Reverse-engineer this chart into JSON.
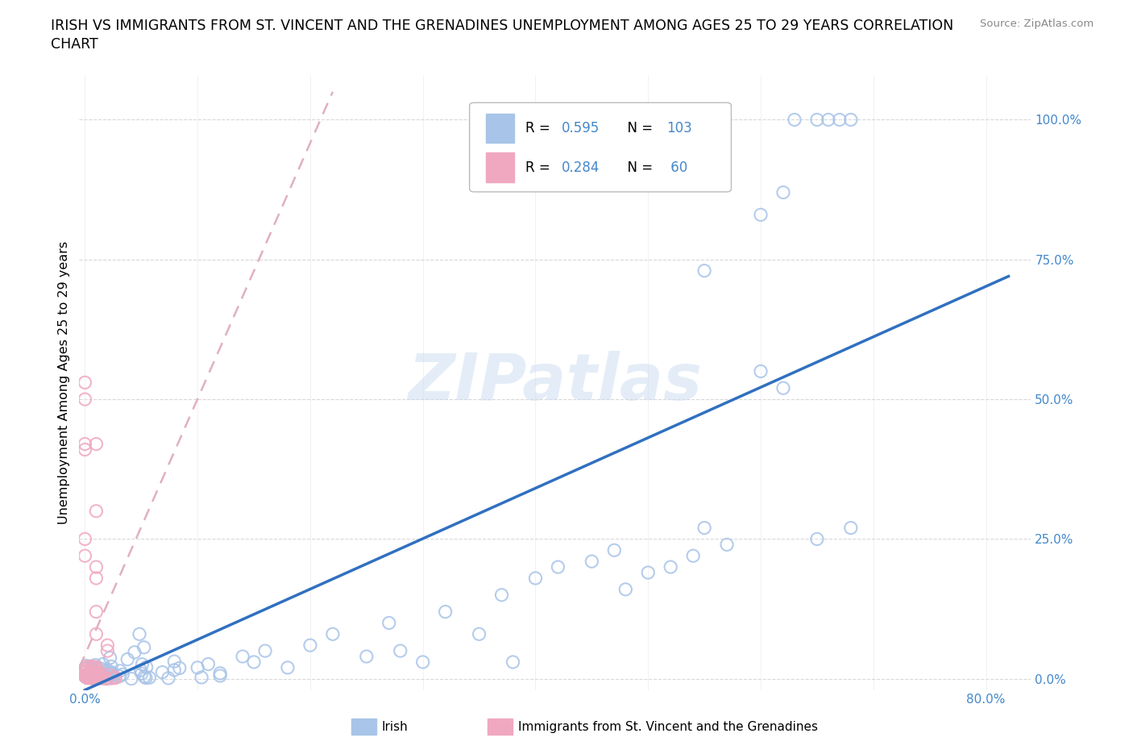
{
  "title_line1": "IRISH VS IMMIGRANTS FROM ST. VINCENT AND THE GRENADINES UNEMPLOYMENT AMONG AGES 25 TO 29 YEARS CORRELATION",
  "title_line2": "CHART",
  "source": "Source: ZipAtlas.com",
  "ylabel": "Unemployment Among Ages 25 to 29 years",
  "irish_color": "#a8c4e8",
  "svg_color": "#f0a8c0",
  "irish_R": 0.595,
  "irish_N": 103,
  "svg_R": 0.284,
  "svg_N": 60,
  "trend_line_color": "#3070c0",
  "trend_line_dashed_color": "#e0b0c0",
  "watermark": "ZIPatlas",
  "background_color": "#ffffff",
  "grid_color": "#d8d8d8",
  "xlim": [
    -0.005,
    0.84
  ],
  "ylim": [
    -0.02,
    1.08
  ],
  "x_ticks": [
    0.0,
    0.1,
    0.2,
    0.3,
    0.4,
    0.5,
    0.6,
    0.7,
    0.8
  ],
  "x_tick_labels": [
    "0.0%",
    "",
    "",
    "",
    "",
    "",
    "",
    "",
    "80.0%"
  ],
  "y_ticks": [
    0.0,
    0.25,
    0.5,
    0.75,
    1.0
  ],
  "y_tick_labels": [
    "0.0%",
    "25.0%",
    "50.0%",
    "75.0%",
    "100.0%"
  ],
  "irish_trend_x0": 0.0,
  "irish_trend_y0": -0.02,
  "irish_trend_x1": 0.82,
  "irish_trend_y1": 0.72,
  "svg_trend_x0": -0.005,
  "svg_trend_y0": 0.02,
  "svg_trend_x1": 0.22,
  "svg_trend_y1": 1.05
}
